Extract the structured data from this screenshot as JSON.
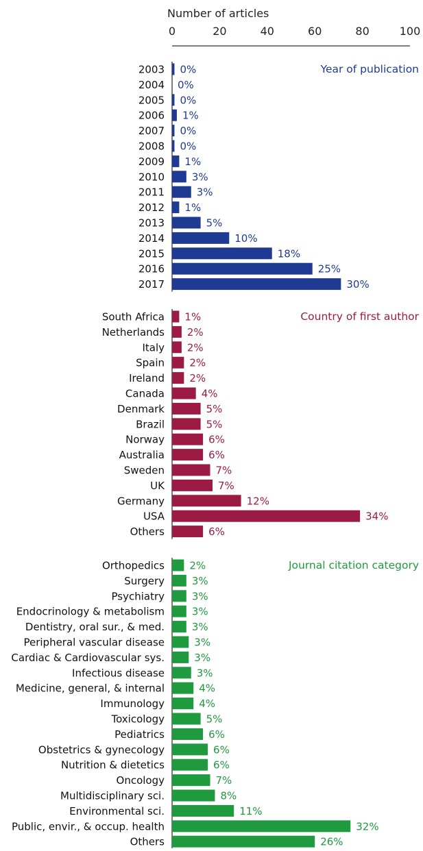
{
  "chart_data": {
    "type": "bar",
    "orientation": "horizontal",
    "xlabel": "Number of articles",
    "xlim": [
      0,
      100
    ],
    "xticks": [
      0,
      20,
      40,
      60,
      80,
      100
    ],
    "grid": false,
    "panels": [
      {
        "title": "Year of publication",
        "color": "#1f3a93",
        "rows": [
          {
            "label": "2003",
            "value": 1,
            "pct": "0%"
          },
          {
            "label": "2004",
            "value": 0,
            "pct": "0%"
          },
          {
            "label": "2005",
            "value": 1,
            "pct": "0%"
          },
          {
            "label": "2006",
            "value": 2,
            "pct": "1%"
          },
          {
            "label": "2007",
            "value": 1,
            "pct": "0%"
          },
          {
            "label": "2008",
            "value": 1,
            "pct": "0%"
          },
          {
            "label": "2009",
            "value": 3,
            "pct": "1%"
          },
          {
            "label": "2010",
            "value": 6,
            "pct": "3%"
          },
          {
            "label": "2011",
            "value": 8,
            "pct": "3%"
          },
          {
            "label": "2012",
            "value": 3,
            "pct": "1%"
          },
          {
            "label": "2013",
            "value": 12,
            "pct": "5%"
          },
          {
            "label": "2014",
            "value": 24,
            "pct": "10%"
          },
          {
            "label": "2015",
            "value": 42,
            "pct": "18%"
          },
          {
            "label": "2016",
            "value": 59,
            "pct": "25%"
          },
          {
            "label": "2017",
            "value": 71,
            "pct": "30%"
          }
        ]
      },
      {
        "title": "Country of first author",
        "color": "#9b1b45",
        "rows": [
          {
            "label": "South Africa",
            "value": 3,
            "pct": "1%"
          },
          {
            "label": "Netherlands",
            "value": 4,
            "pct": "2%"
          },
          {
            "label": "Italy",
            "value": 4,
            "pct": "2%"
          },
          {
            "label": "Spain",
            "value": 5,
            "pct": "2%"
          },
          {
            "label": "Ireland",
            "value": 5,
            "pct": "2%"
          },
          {
            "label": "Canada",
            "value": 10,
            "pct": "4%"
          },
          {
            "label": "Denmark",
            "value": 12,
            "pct": "5%"
          },
          {
            "label": "Brazil",
            "value": 12,
            "pct": "5%"
          },
          {
            "label": "Norway",
            "value": 13,
            "pct": "6%"
          },
          {
            "label": "Australia",
            "value": 13,
            "pct": "6%"
          },
          {
            "label": "Sweden",
            "value": 16,
            "pct": "7%"
          },
          {
            "label": "UK",
            "value": 17,
            "pct": "7%"
          },
          {
            "label": "Germany",
            "value": 29,
            "pct": "12%"
          },
          {
            "label": "USA",
            "value": 79,
            "pct": "34%"
          },
          {
            "label": "Others",
            "value": 13,
            "pct": "6%"
          }
        ]
      },
      {
        "title": "Journal citation category",
        "color": "#1f9a3e",
        "rows": [
          {
            "label": "Orthopedics",
            "value": 5,
            "pct": "2%"
          },
          {
            "label": "Surgery",
            "value": 6,
            "pct": "3%"
          },
          {
            "label": "Psychiatry",
            "value": 6,
            "pct": "3%"
          },
          {
            "label": "Endocrinology & metabolism",
            "value": 6,
            "pct": "3%"
          },
          {
            "label": "Dentistry, oral sur., & med.",
            "value": 6,
            "pct": "3%"
          },
          {
            "label": "Peripheral vascular disease",
            "value": 7,
            "pct": "3%"
          },
          {
            "label": "Cardiac & Cardiovascular sys.",
            "value": 7,
            "pct": "3%"
          },
          {
            "label": "Infectious disease",
            "value": 8,
            "pct": "3%"
          },
          {
            "label": "Medicine, general, & internal",
            "value": 9,
            "pct": "4%"
          },
          {
            "label": "Immunology",
            "value": 9,
            "pct": "4%"
          },
          {
            "label": "Toxicology",
            "value": 12,
            "pct": "5%"
          },
          {
            "label": "Pediatrics",
            "value": 13,
            "pct": "6%"
          },
          {
            "label": "Obstetrics & gynecology",
            "value": 15,
            "pct": "6%"
          },
          {
            "label": "Nutrition & dietetics",
            "value": 15,
            "pct": "6%"
          },
          {
            "label": "Oncology",
            "value": 16,
            "pct": "7%"
          },
          {
            "label": "Multidisciplinary sci.",
            "value": 18,
            "pct": "8%"
          },
          {
            "label": "Environmental sci.",
            "value": 26,
            "pct": "11%"
          },
          {
            "label": "Public, envir., & occup. health",
            "value": 75,
            "pct": "32%"
          },
          {
            "label": "Others",
            "value": 60,
            "pct": "26%"
          }
        ]
      }
    ]
  }
}
